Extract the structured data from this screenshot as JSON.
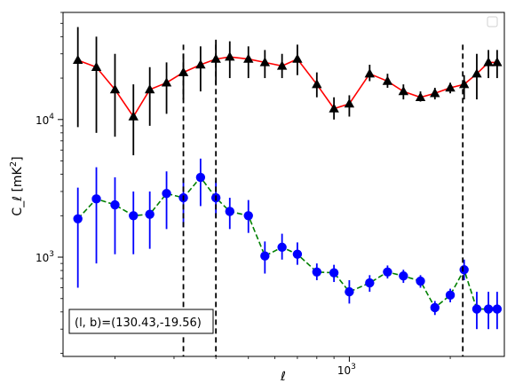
{
  "chart_data": {
    "type": "scatter",
    "xlabel": "ℓ",
    "ylabel": "C_ℓ  [mK²]",
    "xscale": "log",
    "yscale": "log",
    "xlim": [
      140,
      2900
    ],
    "ylim": [
      190,
      60000
    ],
    "x_tick_major": [
      {
        "value": 1000,
        "label": "10^3"
      }
    ],
    "y_tick_major": [
      {
        "value": 1000,
        "label": "10^3"
      },
      {
        "value": 10000,
        "label": "10^4"
      }
    ],
    "legend": {
      "placement": "top-right",
      "entries": []
    },
    "annotation": "(l, b)=(130.43,-19.56)",
    "vlines": [
      {
        "x": 320,
        "style": "dashed"
      },
      {
        "x": 400,
        "style": "dashed"
      },
      {
        "x": 2180,
        "style": "dashed"
      }
    ],
    "series": [
      {
        "marker": "triangle",
        "color": "#000000",
        "line_color": "#ff0000",
        "line_style": "solid",
        "x": [
          155,
          176,
          200,
          227,
          254,
          285,
          320,
          360,
          400,
          440,
          500,
          560,
          630,
          700,
          800,
          900,
          1000,
          1150,
          1300,
          1450,
          1630,
          1800,
          2000,
          2200,
          2400,
          2600,
          2760
        ],
        "y": [
          27000,
          24000,
          16500,
          10500,
          16500,
          18500,
          22000,
          25000,
          27500,
          28500,
          27500,
          26000,
          24500,
          27500,
          18000,
          12000,
          13000,
          21500,
          19000,
          16000,
          14500,
          15500,
          17000,
          18000,
          21500,
          26000,
          26000
        ],
        "y_low": [
          8800,
          8000,
          7500,
          5500,
          9000,
          11000,
          14000,
          16000,
          18000,
          20000,
          20000,
          20000,
          20000,
          21000,
          14500,
          10000,
          10500,
          19000,
          17000,
          14000,
          13500,
          14000,
          15500,
          14000,
          14000,
          20000,
          20000
        ],
        "y_high": [
          47000,
          40000,
          30000,
          18000,
          24000,
          26000,
          30000,
          34000,
          38000,
          37000,
          34000,
          32000,
          30000,
          35000,
          22000,
          14500,
          15000,
          25000,
          21500,
          18000,
          16000,
          17000,
          18500,
          21000,
          30000,
          32000,
          32000
        ]
      },
      {
        "marker": "circle",
        "color": "#0000ff",
        "line_color": "#008000",
        "line_style": "dashed",
        "x": [
          155,
          176,
          200,
          227,
          254,
          285,
          320,
          360,
          400,
          440,
          500,
          560,
          630,
          700,
          800,
          900,
          1000,
          1150,
          1300,
          1450,
          1630,
          1800,
          2000,
          2200,
          2400,
          2600,
          2760
        ],
        "y": [
          1900,
          2650,
          2400,
          2000,
          2050,
          2900,
          2700,
          3800,
          2700,
          2150,
          2000,
          1020,
          1180,
          1050,
          780,
          770,
          560,
          650,
          780,
          730,
          670,
          430,
          530,
          810,
          420,
          420,
          420
        ],
        "y_low": [
          600,
          900,
          1050,
          1050,
          1150,
          1600,
          1650,
          2350,
          1950,
          1600,
          1500,
          760,
          960,
          880,
          680,
          660,
          460,
          560,
          700,
          650,
          600,
          380,
          470,
          680,
          300,
          300,
          300
        ],
        "y_high": [
          3200,
          4500,
          3800,
          3000,
          3000,
          4200,
          3700,
          5200,
          3600,
          2700,
          2600,
          1300,
          1480,
          1280,
          900,
          880,
          680,
          740,
          870,
          810,
          740,
          480,
          590,
          960,
          560,
          560,
          560
        ]
      }
    ]
  }
}
